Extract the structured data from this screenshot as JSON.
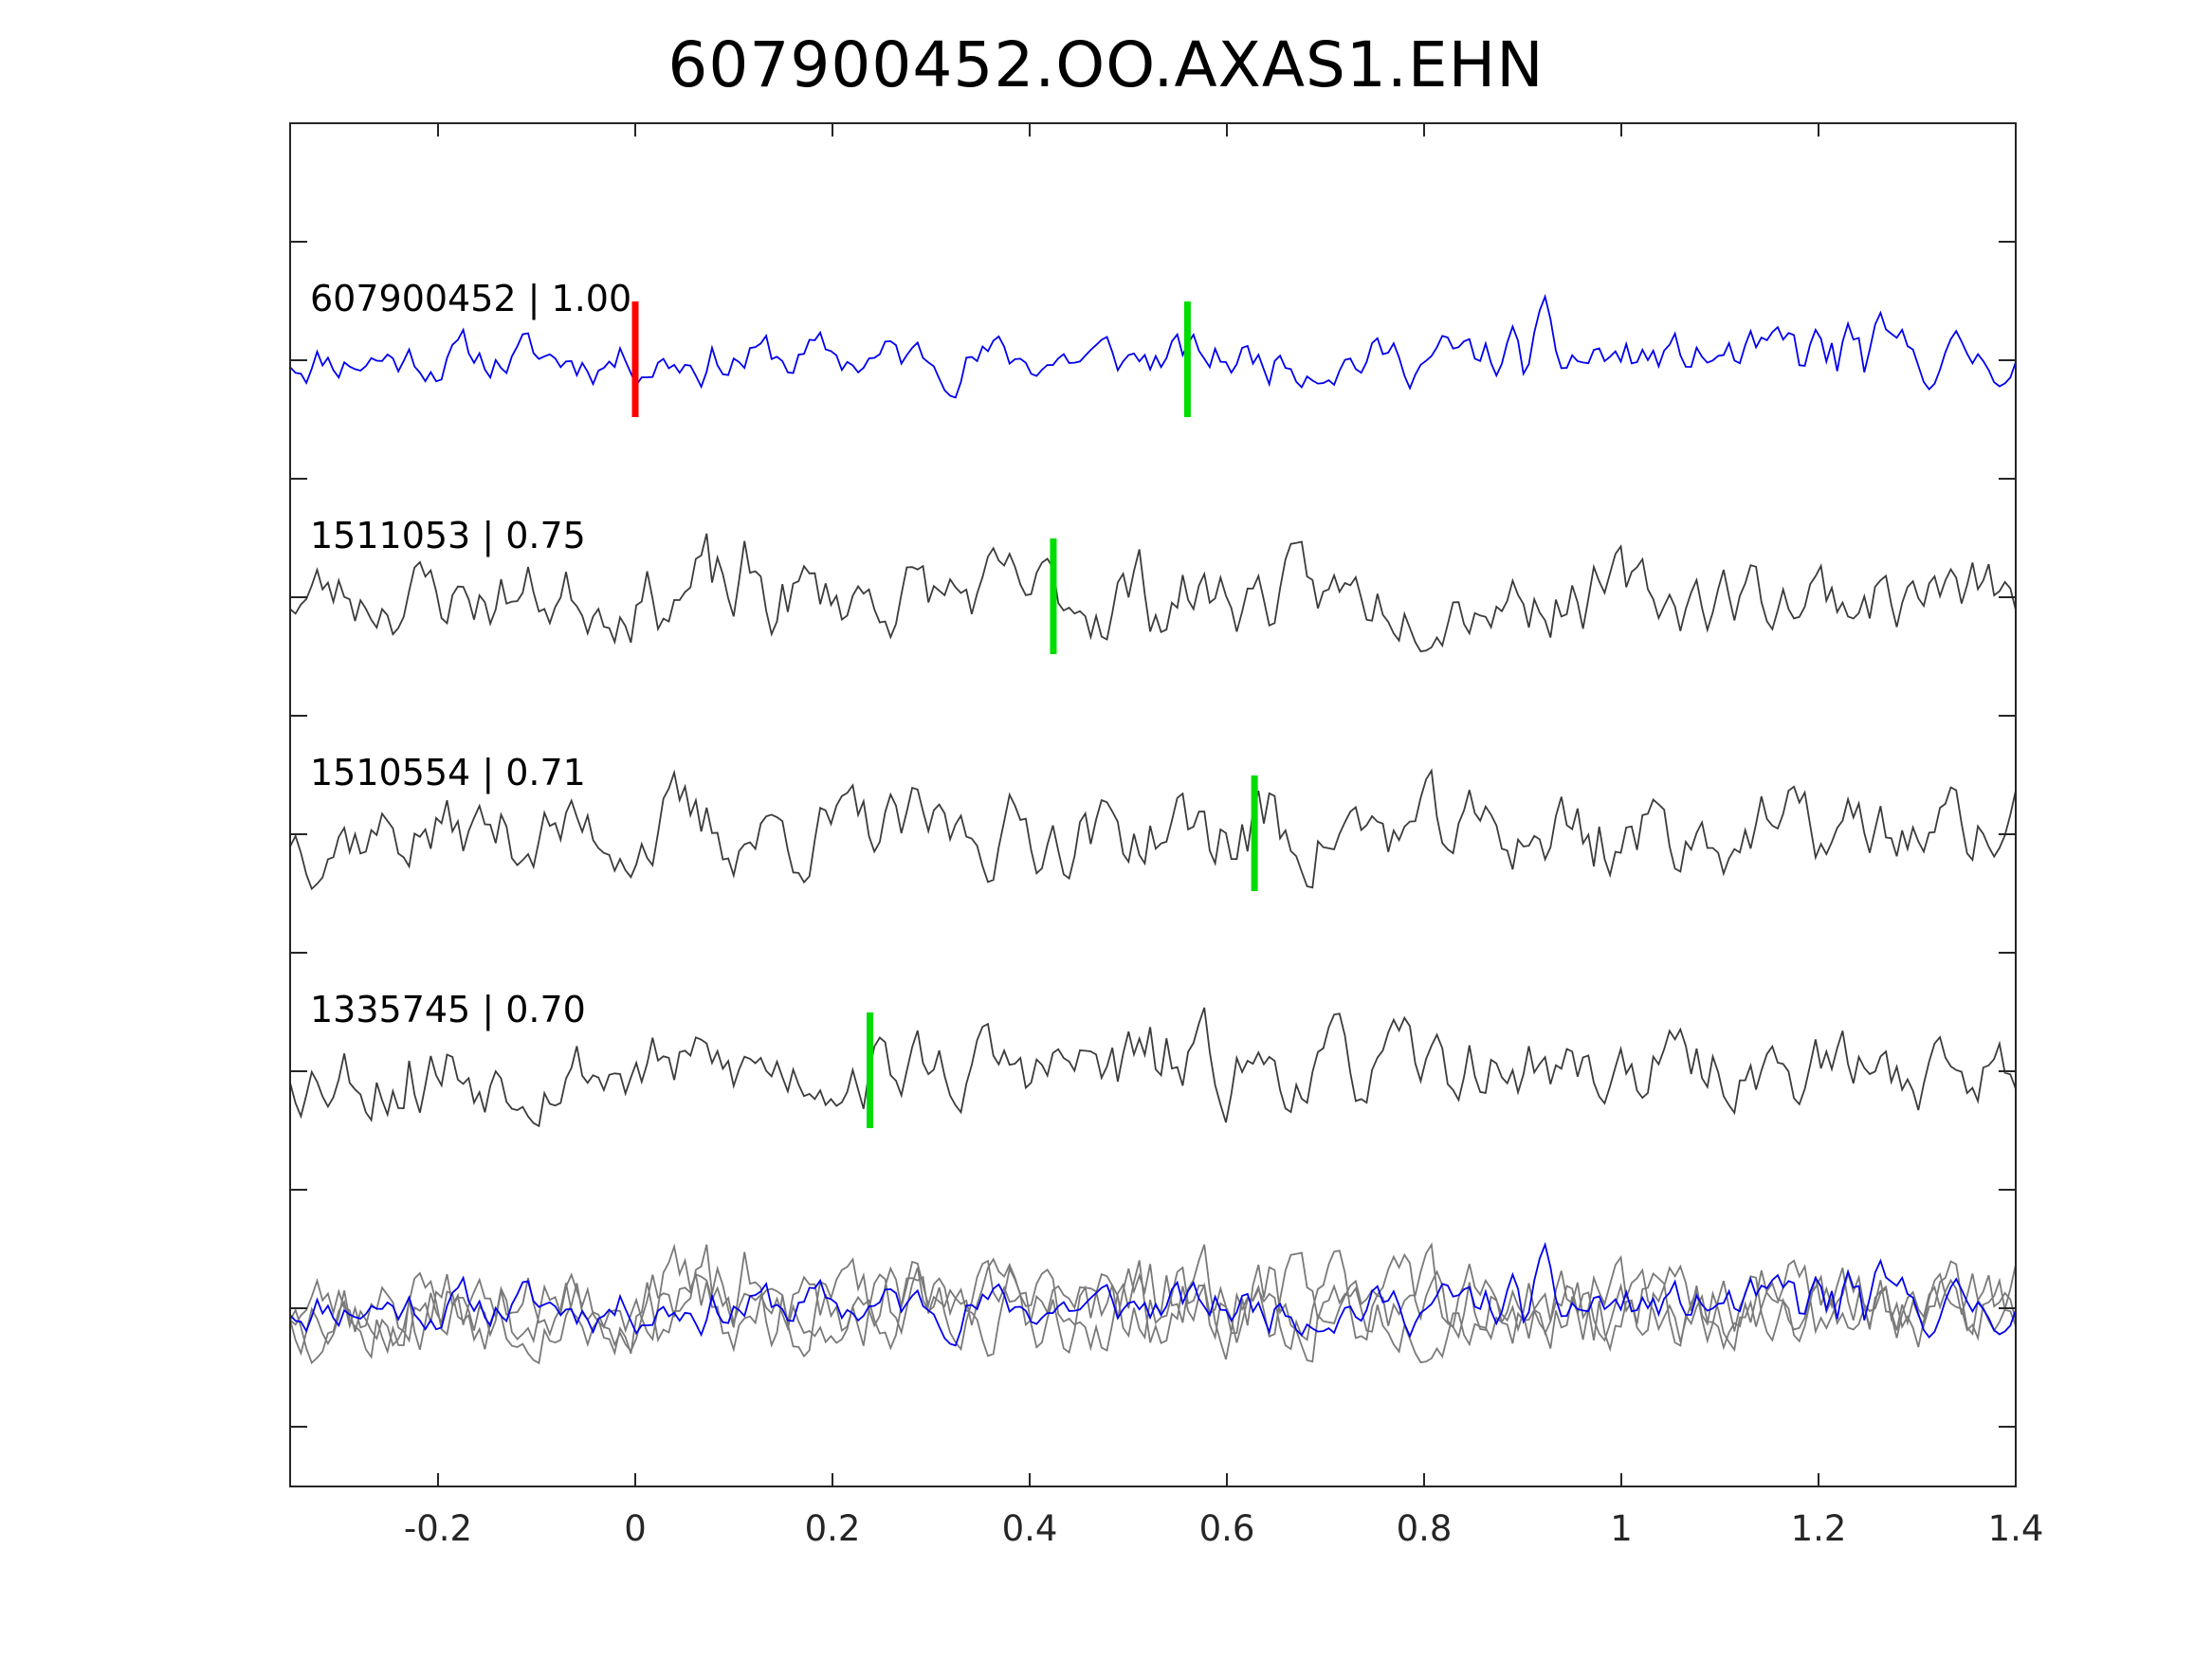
{
  "chart_data": {
    "type": "line",
    "title": "607900452.OO.AXAS1.EHN",
    "xlabel": "",
    "ylabel": "",
    "xlim": [
      -0.35,
      1.4
    ],
    "x_ticks": [
      -0.2,
      0,
      0.2,
      0.4,
      0.6,
      0.8,
      1,
      1.2,
      1.4
    ],
    "x_tick_labels": [
      "-0.2",
      "0",
      "0.2",
      "0.4",
      "0.6",
      "0.8",
      "1",
      "1.2",
      "1.4"
    ],
    "y_tick_count": 11,
    "grid": false,
    "legend": "none",
    "colors": {
      "master": "#0000ee",
      "template": "#3c3c3c",
      "overlay": "#7a7a7a",
      "origin_pick": "#ff0000",
      "phase_pick": "#00dd00",
      "axis": "#262626"
    },
    "series": [
      {
        "label": "607900452 | 1.00",
        "color": "master",
        "seed": 11,
        "pick": 0.56,
        "bursts": [
          [
            0.93,
            1.8
          ],
          [
            1.22,
            2.0
          ],
          [
            0.1,
            1.1
          ]
        ]
      },
      {
        "label": "1511053 | 0.75",
        "color": "template",
        "seed": 23,
        "pick": 0.424,
        "bursts": [
          [
            0.5,
            1.3
          ],
          [
            0.1,
            1.5
          ]
        ]
      },
      {
        "label": "1510554 | 0.71",
        "color": "template",
        "seed": 37,
        "pick": 0.628,
        "bursts": [
          [
            0.63,
            1.5
          ],
          [
            0.97,
            1.5
          ],
          [
            0.05,
            1.2
          ]
        ]
      },
      {
        "label": "1335745 | 0.70",
        "color": "template",
        "seed": 53,
        "pick": 0.238,
        "bursts": [
          [
            0.52,
            1.4
          ],
          [
            -0.22,
            1.5
          ],
          [
            0.75,
            1.0
          ]
        ]
      }
    ],
    "origin_marker": 0
  }
}
